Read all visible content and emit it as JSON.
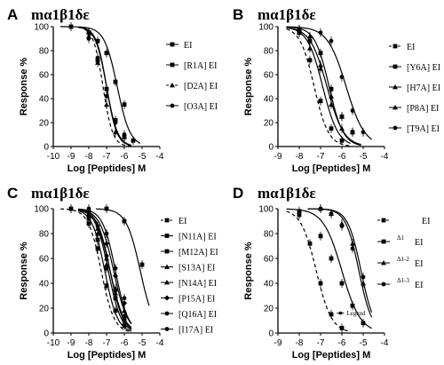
{
  "chart_data": [
    {
      "panel": "A",
      "title": "mα1β1δε",
      "type": "line",
      "xlabel": "Log [Peptides] M",
      "ylabel": "Response %",
      "xlim": [
        -10,
        -4
      ],
      "ylim": [
        0,
        100
      ],
      "xticks": [
        -10,
        -9,
        -8,
        -7,
        -6,
        -5,
        -4
      ],
      "xtick_labels": [
        "-10",
        "-9",
        "-8",
        "-7",
        "-6",
        "-5",
        "-4"
      ],
      "yticks": [
        0,
        20,
        40,
        60,
        80,
        100
      ],
      "ytick_labels": [
        "0",
        "20",
        "40",
        "60",
        "80",
        "100"
      ],
      "legend_position": "right",
      "series": [
        {
          "name": "EI",
          "marker": "square",
          "line": "solid",
          "logEC50": -7.0,
          "hill": 1.5,
          "x": [
            -8,
            -7.5,
            -7,
            -6.5,
            -6
          ],
          "y": [
            95,
            72,
            48,
            22,
            8
          ]
        },
        {
          "name": "[R1A] EI",
          "marker": "square",
          "line": "solid",
          "logEC50": -6.4,
          "hill": 1.2,
          "x": [
            -9,
            -8,
            -7.5,
            -7,
            -6.5,
            -6,
            -5.5
          ],
          "y": [
            100,
            95,
            88,
            78,
            54,
            35,
            5
          ]
        },
        {
          "name": "[D2A] EI",
          "marker": "triangle",
          "line": "dashed",
          "logEC50": -7.2,
          "hill": 1.6,
          "x": [
            -8,
            -7.5,
            -7,
            -6.5,
            -6
          ],
          "y": [
            92,
            70,
            35,
            12,
            8
          ]
        },
        {
          "name": "[O3A] EI",
          "marker": "circle",
          "line": "solid",
          "logEC50": -7.0,
          "hill": 1.4,
          "x": [
            -8,
            -7.5,
            -7,
            -6.5,
            -6
          ],
          "y": [
            90,
            74,
            42,
            20,
            10
          ]
        }
      ]
    },
    {
      "panel": "B",
      "title": "mα1β1δε",
      "type": "line",
      "xlabel": "Log [Peptides] M",
      "ylabel": "Response %",
      "xlim": [
        -9,
        -4
      ],
      "ylim": [
        0,
        100
      ],
      "xticks": [
        -9,
        -8,
        -7,
        -6,
        -5,
        -4
      ],
      "xtick_labels": [
        "-9",
        "-8",
        "-7",
        "-6",
        "-5",
        "-4"
      ],
      "yticks": [
        0,
        20,
        40,
        60,
        80,
        100
      ],
      "ytick_labels": [
        "0",
        "20",
        "40",
        "60",
        "80",
        "100"
      ],
      "legend_position": "right",
      "series": [
        {
          "name": "EI",
          "marker": "square",
          "line": "dashed",
          "logEC50": -7.3,
          "hill": 1.3,
          "x": [
            -8,
            -7.5,
            -7,
            -6.5,
            -6
          ],
          "y": [
            95,
            72,
            38,
            15,
            5
          ]
        },
        {
          "name": "[Y6A] EI",
          "marker": "square",
          "line": "solid",
          "logEC50": -6.6,
          "hill": 1.3,
          "x": [
            -8,
            -7.5,
            -7,
            -6.5,
            -6,
            -5.5
          ],
          "y": [
            97,
            88,
            78,
            48,
            25,
            12
          ]
        },
        {
          "name": "[H7A] EI",
          "marker": "triangle",
          "line": "solid",
          "logEC50": -6.9,
          "hill": 1.2,
          "x": [
            -8,
            -7.5,
            -7,
            -6.5,
            -6
          ],
          "y": [
            95,
            82,
            68,
            35,
            15
          ]
        },
        {
          "name": "[P8A] EI",
          "marker": "triangle",
          "line": "solid",
          "logEC50": -6.7,
          "hill": 1.1,
          "x": [
            -8,
            -7.5,
            -7,
            -6.5,
            -6,
            -5.5
          ],
          "y": [
            98,
            92,
            65,
            42,
            25,
            12
          ]
        },
        {
          "name": "[T9A] EI",
          "marker": "circle",
          "line": "solid",
          "logEC50": -5.8,
          "hill": 1.0,
          "x": [
            -8,
            -7,
            -6.5,
            -6,
            -5.5,
            -5
          ],
          "y": [
            98,
            95,
            88,
            58,
            30,
            12
          ]
        }
      ]
    },
    {
      "panel": "C",
      "title": "mα1β1δε",
      "type": "line",
      "xlabel": "Log [Peptides] M",
      "ylabel": "Response %",
      "xlim": [
        -10,
        -4
      ],
      "ylim": [
        0,
        100
      ],
      "xticks": [
        -10,
        -9,
        -8,
        -7,
        -6,
        -5,
        -4
      ],
      "xtick_labels": [
        "-10",
        "-9",
        "-8",
        "-7",
        "-6",
        "-5",
        "-4"
      ],
      "yticks": [
        0,
        20,
        40,
        60,
        80,
        100
      ],
      "ytick_labels": [
        "0",
        "20",
        "40",
        "60",
        "80",
        "100"
      ],
      "legend_position": "right",
      "series": [
        {
          "name": "EI",
          "marker": "square",
          "line": "dashed",
          "logEC50": -7.3,
          "hill": 1.2,
          "x": [
            -9,
            -8,
            -7.5,
            -7,
            -6.5,
            -6
          ],
          "y": [
            100,
            88,
            68,
            38,
            18,
            6
          ]
        },
        {
          "name": "[N11A] EI",
          "marker": "square",
          "line": "solid",
          "logEC50": -5.1,
          "hill": 1.1,
          "x": [
            -7,
            -6,
            -5
          ],
          "y": [
            100,
            90,
            55
          ]
        },
        {
          "name": "[M12A] EI",
          "marker": "square",
          "line": "solid",
          "logEC50": -7.1,
          "hill": 1.2,
          "x": [
            -8,
            -7.5,
            -7,
            -6.5,
            -6
          ],
          "y": [
            92,
            75,
            52,
            28,
            10
          ]
        },
        {
          "name": "[S13A] EI",
          "marker": "triangle",
          "line": "solid",
          "logEC50": -6.9,
          "hill": 1.2,
          "x": [
            -8,
            -7.5,
            -7,
            -6.5,
            -6
          ],
          "y": [
            95,
            80,
            55,
            32,
            14
          ]
        },
        {
          "name": "[N14A] EI",
          "marker": "triangle",
          "line": "solid",
          "logEC50": -6.8,
          "hill": 1.1,
          "x": [
            -8,
            -7.5,
            -7,
            -6.5,
            -6
          ],
          "y": [
            96,
            84,
            60,
            36,
            18
          ]
        },
        {
          "name": "[P15A] EI",
          "marker": "diamond",
          "line": "solid",
          "logEC50": -6.6,
          "hill": 1.1,
          "x": [
            -8,
            -7,
            -6.5,
            -6
          ],
          "y": [
            98,
            72,
            46,
            24
          ]
        },
        {
          "name": "[Q16A] EI",
          "marker": "circle",
          "line": "solid",
          "logEC50": -6.8,
          "hill": 1.2,
          "x": [
            -8,
            -7.5,
            -7,
            -6.5,
            -6
          ],
          "y": [
            98,
            86,
            62,
            34,
            12
          ]
        },
        {
          "name": "[I17A] EI",
          "marker": "circle",
          "line": "solid",
          "logEC50": -6.5,
          "hill": 1.2,
          "x": [
            -8,
            -7,
            -6.5,
            -6
          ],
          "y": [
            100,
            80,
            52,
            28
          ]
        }
      ]
    },
    {
      "panel": "D",
      "title": "mα1β1δε",
      "type": "line",
      "xlabel": "Log [Peptides] M",
      "ylabel": "Response %",
      "xlim": [
        -9,
        -4
      ],
      "ylim": [
        0,
        100
      ],
      "xticks": [
        -9,
        -8,
        -7,
        -6,
        -5,
        -4
      ],
      "xtick_labels": [
        "-9",
        "-8",
        "-7",
        "-6",
        "-5",
        "-4"
      ],
      "yticks": [
        0,
        20,
        40,
        60,
        80,
        100
      ],
      "ytick_labels": [
        "0",
        "20",
        "40",
        "60",
        "80",
        "100"
      ],
      "legend_position": "right",
      "series": [
        {
          "name": "EI",
          "name_parts": [
            "",
            "EI"
          ],
          "marker": "square",
          "line": "dashed",
          "logEC50": -7.2,
          "hill": 1.2,
          "x": [
            -8,
            -7.5,
            -7,
            -6.5,
            -6
          ],
          "y": [
            98,
            72,
            40,
            15,
            4
          ]
        },
        {
          "name": "Δ1 EI",
          "name_parts": [
            "Δ1",
            "EI"
          ],
          "marker": "square",
          "line": "solid",
          "logEC50": -6.0,
          "hill": 1.0,
          "x": [
            -8,
            -7,
            -6.5,
            -6,
            -5.5,
            -5
          ],
          "y": [
            95,
            78,
            60,
            40,
            22,
            8
          ]
        },
        {
          "name": "Δ1-2 EI",
          "name_parts": [
            "Δ1-2",
            "EI"
          ],
          "marker": "triangle",
          "line": "solid",
          "logEC50": -5.2,
          "hill": 1.4,
          "x": [
            -7,
            -6.5,
            -6,
            -5.5,
            -5
          ],
          "y": [
            100,
            96,
            88,
            72,
            40
          ]
        },
        {
          "name": "Δ1-3 EI",
          "name_parts": [
            "Δ1-3",
            "EI"
          ],
          "marker": "circle",
          "line": "solid",
          "logEC50": -5.1,
          "hill": 1.4,
          "x": [
            -7,
            -6.5,
            -6,
            -5.5,
            -5
          ],
          "y": [
            100,
            96,
            86,
            68,
            45
          ]
        }
      ],
      "annotation": "Legend"
    }
  ]
}
